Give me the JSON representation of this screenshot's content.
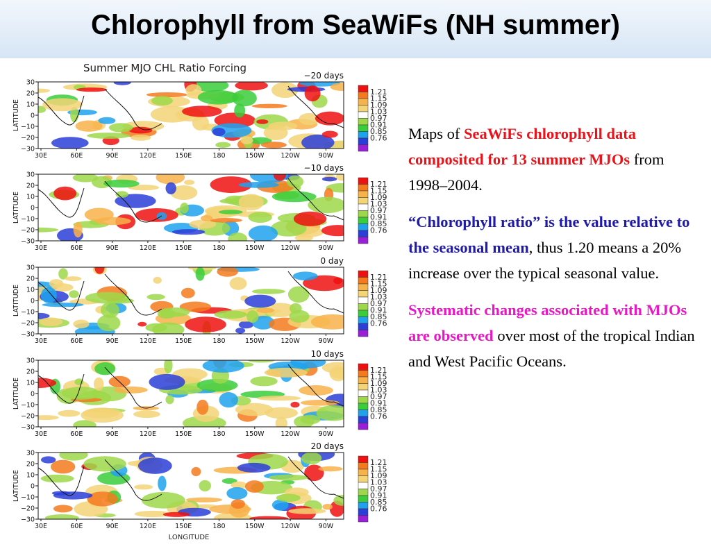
{
  "slide": {
    "title": "Chlorophyll from SeaWiFs (NH summer)"
  },
  "figure": {
    "title": "Summer MJO CHL Ratio Forcing",
    "y_axis_label": "LATITUDE",
    "x_axis_label": "LONGITUDE",
    "lat_ticks": [
      "30",
      "20",
      "10",
      "0",
      "−10",
      "−20",
      "−30"
    ],
    "lon_ticks": [
      "30E",
      "60E",
      "90E",
      "120E",
      "150E",
      "180",
      "150W",
      "120W",
      "90W"
    ],
    "colorbar_labels": [
      "1.21",
      "1.15",
      "1.09",
      "1.03",
      "0.97",
      "0.91",
      "0.85",
      "0.76"
    ],
    "colorbar_colors": [
      "#ee1111",
      "#f57a1e",
      "#f8b24a",
      "#f3d477",
      "#ffffff",
      "#9ed84a",
      "#3bcc3b",
      "#1fa2ee",
      "#2b3ed8",
      "#9a1fd6"
    ],
    "panels": [
      {
        "lag": "−20 days"
      },
      {
        "lag": "−10 days"
      },
      {
        "lag": "0 day"
      },
      {
        "lag": "10 days"
      },
      {
        "lag": "20 days"
      }
    ]
  },
  "description": {
    "p1_prefix": "Maps of ",
    "p1_highlight": "SeaWiFs chlorophyll data composited for 13 summer MJOs",
    "p1_suffix": " from 1998–2004.",
    "p2_highlight": "“Chlorophyll  ratio” is the value relative to the seasonal mean",
    "p2_suffix": ", thus 1.20 means a 20% increase over the typical seasonal value.",
    "p3_highlight": "Systematic changes associated with MJOs are observed",
    "p3_suffix": " over most of the tropical Indian and West Pacific Oceans."
  }
}
